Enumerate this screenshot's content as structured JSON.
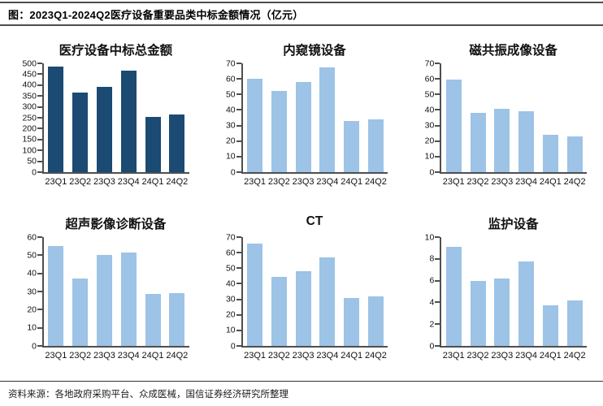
{
  "header": {
    "title": "图：2023Q1-2024Q2医疗设备重要品类中标金额情况（亿元）"
  },
  "footer": {
    "source": "资料来源：各地政府采购平台、众成医械，国信证券经济研究所整理"
  },
  "colors": {
    "dark_bar": "#1B4A73",
    "light_bar": "#9DC3E6",
    "axis": "#4F4F4F",
    "rule": "#4D4D4D"
  },
  "chart_data": [
    {
      "type": "bar",
      "title": "医疗设备中标总金额",
      "categories": [
        "23Q1",
        "23Q2",
        "23Q3",
        "23Q4",
        "24Q1",
        "24Q2"
      ],
      "values": [
        485,
        365,
        390,
        465,
        253,
        265
      ],
      "ylim": [
        0,
        500
      ],
      "ystep": 50,
      "bar_color": "#1B4A73",
      "grid": false,
      "legend": "none",
      "unit": "亿元"
    },
    {
      "type": "bar",
      "title": "内窥镜设备",
      "categories": [
        "23Q1",
        "23Q2",
        "23Q3",
        "23Q4",
        "24Q1",
        "24Q2"
      ],
      "values": [
        60,
        52,
        58,
        67.5,
        33,
        34
      ],
      "ylim": [
        0,
        70
      ],
      "ystep": 10,
      "bar_color": "#9DC3E6",
      "grid": false,
      "legend": "none",
      "unit": "亿元"
    },
    {
      "type": "bar",
      "title": "磁共振成像设备",
      "categories": [
        "23Q1",
        "23Q2",
        "23Q3",
        "23Q4",
        "24Q1",
        "24Q2"
      ],
      "values": [
        59.5,
        38,
        41,
        39,
        24,
        23
      ],
      "ylim": [
        0,
        70
      ],
      "ystep": 10,
      "bar_color": "#9DC3E6",
      "grid": false,
      "legend": "none",
      "unit": "亿元"
    },
    {
      "type": "bar",
      "title": "超声影像诊断设备",
      "categories": [
        "23Q1",
        "23Q2",
        "23Q3",
        "23Q4",
        "24Q1",
        "24Q2"
      ],
      "values": [
        55,
        37,
        50,
        51.5,
        28.5,
        29
      ],
      "ylim": [
        0,
        60
      ],
      "ystep": 10,
      "bar_color": "#9DC3E6",
      "grid": false,
      "legend": "none",
      "unit": "亿元"
    },
    {
      "type": "bar",
      "title": "CT",
      "categories": [
        "23Q1",
        "23Q2",
        "23Q3",
        "23Q4",
        "24Q1",
        "24Q2"
      ],
      "values": [
        66,
        44.5,
        48,
        57,
        31,
        32
      ],
      "ylim": [
        0,
        70
      ],
      "ystep": 10,
      "bar_color": "#9DC3E6",
      "grid": false,
      "legend": "none",
      "unit": "亿元"
    },
    {
      "type": "bar",
      "title": "监护设备",
      "categories": [
        "23Q1",
        "23Q2",
        "23Q3",
        "23Q4",
        "24Q1",
        "24Q2"
      ],
      "values": [
        9.1,
        6,
        6.2,
        7.75,
        3.7,
        4.15
      ],
      "ylim": [
        0,
        10
      ],
      "ystep": 2,
      "bar_color": "#9DC3E6",
      "grid": false,
      "legend": "none",
      "unit": "亿元"
    }
  ]
}
